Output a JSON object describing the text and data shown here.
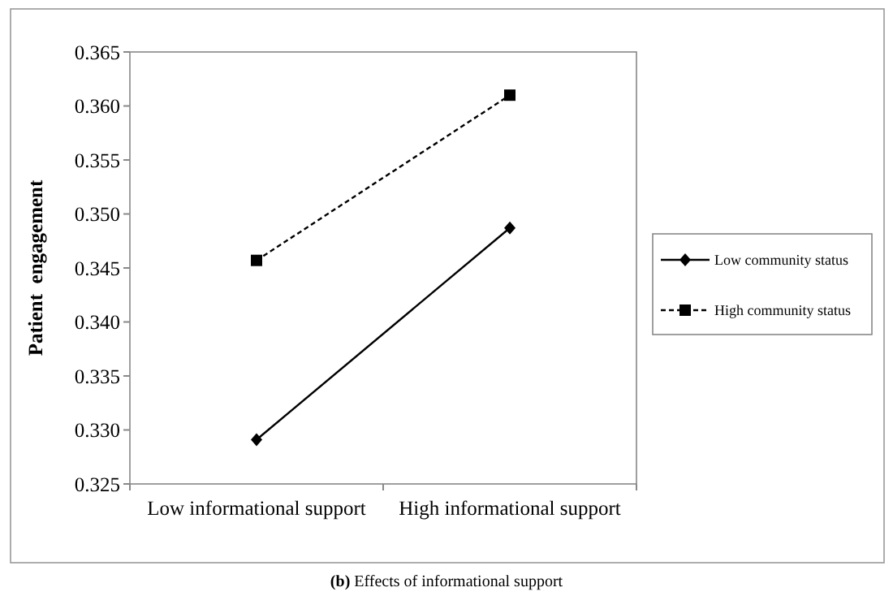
{
  "chart_data": {
    "type": "line",
    "ylabel": "Patient  engagement",
    "categories": [
      "Low informational support",
      "High informational support"
    ],
    "series": [
      {
        "name": "Low community status",
        "color": "#000000",
        "values": [
          0.3291,
          0.3487
        ],
        "marker": "diamond",
        "line_style": "solid"
      },
      {
        "name": "High community status",
        "color": "#000000",
        "values": [
          0.3457,
          0.361
        ],
        "marker": "square",
        "line_style": "dashed"
      }
    ],
    "ylim": [
      0.325,
      0.365
    ],
    "yticks": [
      0.325,
      {
        "value": 0.33,
        "label": "0.330"
      },
      0.335,
      {
        "value": 0.34,
        "label": "0.340"
      },
      0.345,
      {
        "value": 0.35,
        "label": "0.350"
      },
      0.355,
      {
        "value": 0.36,
        "label": "0.360"
      },
      0.365
    ],
    "grid": false,
    "legend": "right",
    "annotations": [
      "(b) Effects of informational support"
    ]
  }
}
